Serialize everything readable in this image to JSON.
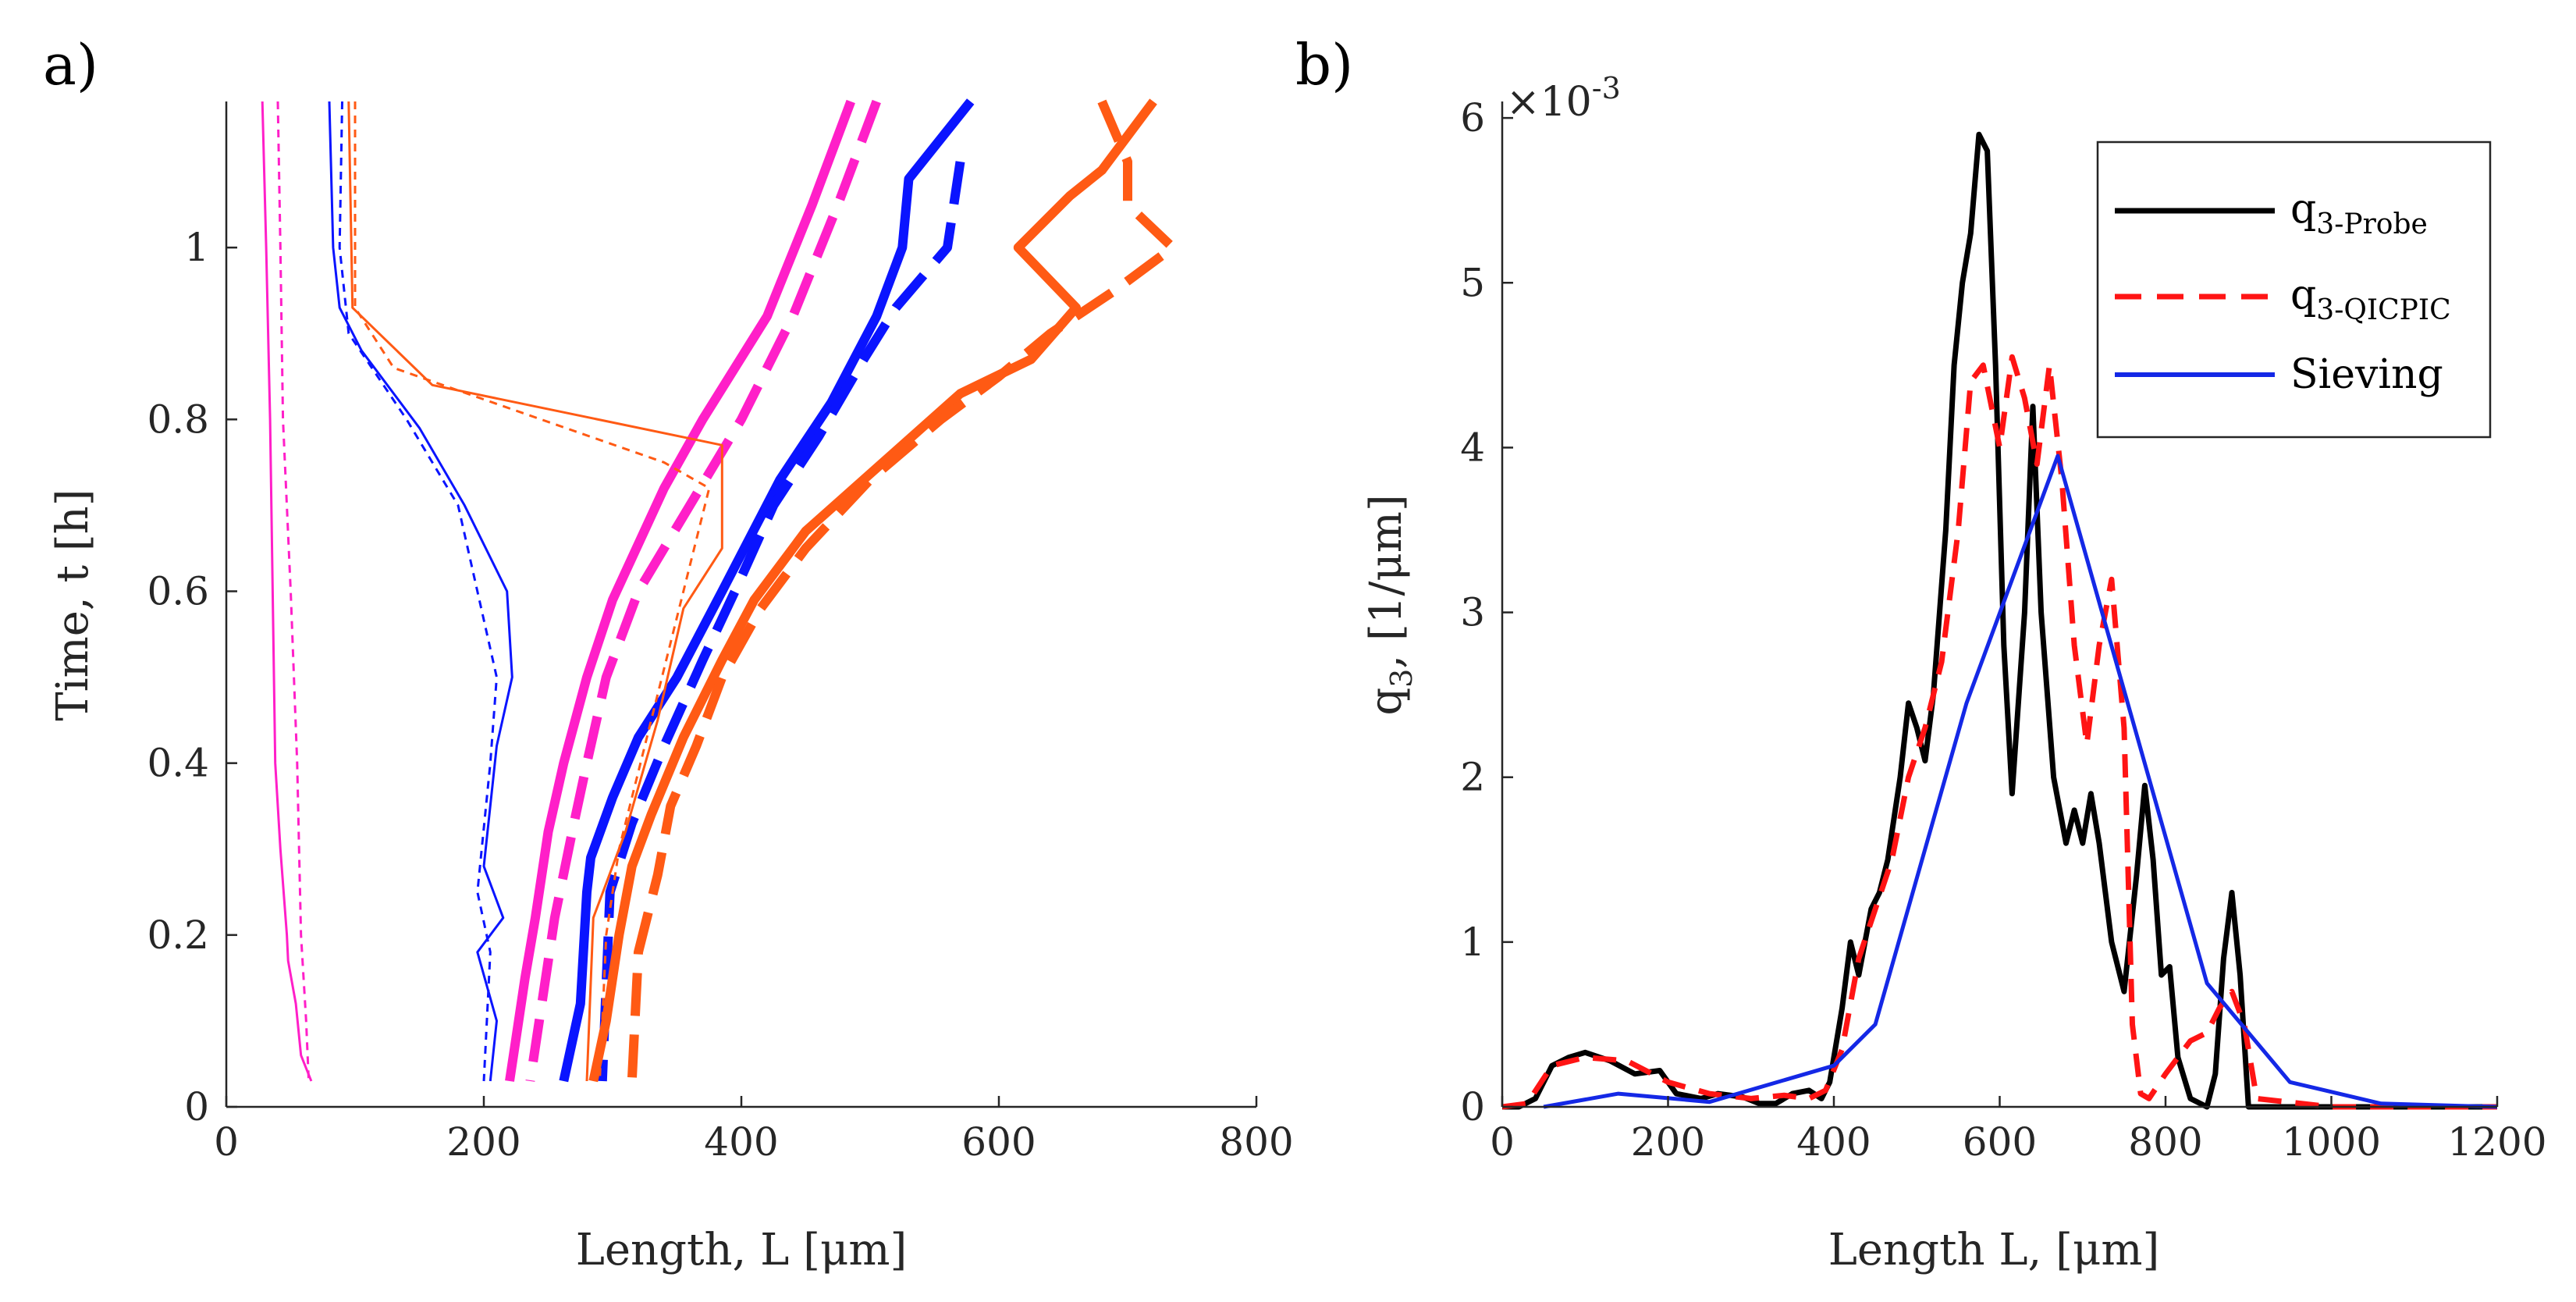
{
  "chart_data": [
    {
      "type": "line",
      "panel_label": "a)",
      "xlabel": "Length, L [μm]",
      "ylabel": "Time, t [h]",
      "xlim": [
        0,
        800
      ],
      "ylim": [
        0,
        1.17
      ],
      "xticks": [
        0,
        200,
        400,
        600,
        800
      ],
      "xtick_labels": [
        "0",
        "200",
        "400",
        "600",
        "800"
      ],
      "yticks": [
        0,
        0.2,
        0.4,
        0.6,
        0.8,
        1
      ],
      "ytick_labels": [
        "0",
        "0.2",
        "0.4",
        "0.6",
        "0.8",
        "1"
      ],
      "grid": false,
      "series": [
        {
          "name": "magenta-thin-solid",
          "color": "#ff1fc8",
          "weight": "thin",
          "dash": "solid",
          "x": [
            28,
            31,
            34,
            36,
            38,
            42,
            47,
            48,
            54,
            58,
            66
          ],
          "y": [
            1.17,
            1.0,
            0.8,
            0.6,
            0.4,
            0.3,
            0.2,
            0.17,
            0.12,
            0.06,
            0.03
          ]
        },
        {
          "name": "magenta-thin-dashed",
          "color": "#ff1fc8",
          "weight": "thin",
          "dash": "dashed",
          "x": [
            40,
            42,
            44,
            50,
            55,
            58,
            62,
            64
          ],
          "y": [
            1.17,
            1.0,
            0.8,
            0.6,
            0.4,
            0.2,
            0.1,
            0.03
          ]
        },
        {
          "name": "magenta-thick-solid",
          "color": "#ff1fc8",
          "weight": "thick",
          "dash": "solid",
          "x": [
            485,
            455,
            420,
            370,
            340,
            300,
            280,
            262,
            250,
            240,
            232,
            225,
            220
          ],
          "y": [
            1.17,
            1.05,
            0.92,
            0.8,
            0.72,
            0.59,
            0.5,
            0.4,
            0.32,
            0.22,
            0.15,
            0.08,
            0.03
          ]
        },
        {
          "name": "magenta-thick-dashed",
          "color": "#ff1fc8",
          "weight": "thick",
          "dash": "dashed",
          "x": [
            505,
            475,
            440,
            400,
            360,
            320,
            295,
            280,
            270,
            255,
            245,
            236
          ],
          "y": [
            1.17,
            1.05,
            0.92,
            0.8,
            0.7,
            0.6,
            0.5,
            0.4,
            0.33,
            0.22,
            0.12,
            0.03
          ]
        },
        {
          "name": "blue-thin-solid",
          "color": "#0a14ff",
          "weight": "thin",
          "dash": "solid",
          "x": [
            80,
            83,
            88,
            105,
            150,
            185,
            218,
            222,
            210,
            200,
            215,
            195,
            210,
            205
          ],
          "y": [
            1.17,
            1.0,
            0.93,
            0.88,
            0.79,
            0.7,
            0.6,
            0.5,
            0.42,
            0.28,
            0.22,
            0.18,
            0.1,
            0.03
          ]
        },
        {
          "name": "blue-thin-dashed",
          "color": "#0a14ff",
          "weight": "thin",
          "dash": "dashed",
          "x": [
            90,
            88,
            95,
            140,
            180,
            210,
            205,
            195,
            205,
            200
          ],
          "y": [
            1.17,
            1.0,
            0.9,
            0.8,
            0.7,
            0.5,
            0.4,
            0.25,
            0.18,
            0.03
          ]
        },
        {
          "name": "blue-thick-solid",
          "color": "#0a14ff",
          "weight": "thick",
          "dash": "solid",
          "x": [
            578,
            530,
            525,
            505,
            470,
            430,
            385,
            350,
            320,
            300,
            283,
            280,
            275,
            262
          ],
          "y": [
            1.17,
            1.08,
            1.0,
            0.92,
            0.82,
            0.73,
            0.6,
            0.5,
            0.43,
            0.36,
            0.29,
            0.25,
            0.12,
            0.03
          ]
        },
        {
          "name": "blue-thick-dashed",
          "color": "#0a14ff",
          "weight": "thick",
          "dash": "dashed",
          "x": [
            570,
            560,
            520,
            495,
            460,
            425,
            395,
            370,
            340,
            315,
            298,
            292
          ],
          "y": [
            1.1,
            1.0,
            0.93,
            0.87,
            0.78,
            0.7,
            0.6,
            0.52,
            0.42,
            0.33,
            0.25,
            0.03
          ]
        },
        {
          "name": "orange-thin-solid",
          "color": "#ff5a14",
          "weight": "thin",
          "dash": "solid",
          "x": [
            95,
            98,
            160,
            385,
            385,
            355,
            335,
            310,
            285,
            280
          ],
          "y": [
            1.17,
            0.93,
            0.84,
            0.77,
            0.65,
            0.58,
            0.45,
            0.32,
            0.22,
            0.03
          ]
        },
        {
          "name": "orange-thin-dashed",
          "color": "#ff5a14",
          "weight": "thin",
          "dash": "dashed",
          "x": [
            100,
            100,
            130,
            340,
            375,
            355,
            330,
            305,
            295,
            290
          ],
          "y": [
            1.17,
            0.93,
            0.86,
            0.75,
            0.72,
            0.6,
            0.45,
            0.3,
            0.2,
            0.03
          ]
        },
        {
          "name": "orange-thick-solid",
          "color": "#ff5a14",
          "weight": "thick",
          "dash": "solid",
          "x": [
            720,
            680,
            655,
            615,
            660,
            625,
            570,
            510,
            450,
            410,
            385,
            355,
            330,
            315,
            305,
            295,
            285
          ],
          "y": [
            1.17,
            1.09,
            1.06,
            1.0,
            0.93,
            0.87,
            0.83,
            0.75,
            0.67,
            0.59,
            0.52,
            0.43,
            0.34,
            0.28,
            0.2,
            0.1,
            0.03
          ]
        },
        {
          "name": "orange-thick-dashed",
          "color": "#ff5a14",
          "weight": "thick",
          "dash": "dashed",
          "x": [
            680,
            700,
            700,
            735,
            690,
            640,
            600,
            555,
            500,
            450,
            415,
            385,
            365,
            345,
            335,
            320,
            315
          ],
          "y": [
            1.17,
            1.1,
            1.05,
            1.0,
            0.95,
            0.9,
            0.85,
            0.8,
            0.73,
            0.65,
            0.58,
            0.5,
            0.42,
            0.35,
            0.27,
            0.18,
            0.03
          ]
        }
      ]
    },
    {
      "type": "line",
      "panel_label": "b)",
      "xlabel": "Length L, [μm]",
      "ylabel": "q",
      "ylabel_sub": "3",
      "ylabel_rest": ", [1/μm]",
      "exponent_base": "×10",
      "exponent": "-3",
      "xlim": [
        0,
        1200
      ],
      "ylim": [
        0,
        6.1
      ],
      "xticks": [
        0,
        200,
        400,
        600,
        800,
        1000,
        1200
      ],
      "xtick_labels": [
        "0",
        "200",
        "400",
        "600",
        "800",
        "1000",
        "1200"
      ],
      "yticks": [
        0,
        1,
        2,
        3,
        4,
        5,
        6
      ],
      "ytick_labels": [
        "0",
        "1",
        "2",
        "3",
        "4",
        "5",
        "6"
      ],
      "grid": false,
      "legend_position": "top-right",
      "legend": [
        {
          "label": "q",
          "sub": "3-Probe",
          "color": "#000000",
          "dash": "solid"
        },
        {
          "label": "q",
          "sub": "3-QICPIC",
          "color": "#ff1414",
          "dash": "dashed"
        },
        {
          "label": "Sieving",
          "sub": "",
          "color": "#1428e6",
          "dash": "solid"
        }
      ],
      "series": [
        {
          "name": "q3-Probe",
          "color": "#000000",
          "dash": "solid",
          "x": [
            0,
            20,
            40,
            60,
            80,
            100,
            130,
            160,
            190,
            210,
            240,
            260,
            290,
            310,
            330,
            350,
            370,
            385,
            395,
            410,
            420,
            430,
            445,
            455,
            465,
            480,
            490,
            500,
            510,
            520,
            535,
            545,
            555,
            565,
            575,
            585,
            595,
            605,
            615,
            630,
            640,
            650,
            665,
            680,
            690,
            700,
            710,
            720,
            735,
            750,
            765,
            775,
            785,
            795,
            805,
            815,
            830,
            850,
            860,
            870,
            880,
            890,
            900,
            920,
            1000,
            1100,
            1200
          ],
          "y": [
            0,
            0,
            0.05,
            0.25,
            0.3,
            0.33,
            0.28,
            0.2,
            0.22,
            0.08,
            0.05,
            0.08,
            0.06,
            0.02,
            0.02,
            0.08,
            0.1,
            0.05,
            0.15,
            0.6,
            1.0,
            0.8,
            1.2,
            1.3,
            1.5,
            2.0,
            2.45,
            2.3,
            2.1,
            2.5,
            3.5,
            4.5,
            5.0,
            5.3,
            5.9,
            5.8,
            4.5,
            2.8,
            1.9,
            3.0,
            4.25,
            3.0,
            2.0,
            1.6,
            1.8,
            1.6,
            1.9,
            1.6,
            1.0,
            0.7,
            1.4,
            1.95,
            1.5,
            0.8,
            0.85,
            0.3,
            0.05,
            0.0,
            0.2,
            0.9,
            1.3,
            0.8,
            0.0,
            0.0,
            0.0,
            0.0,
            0.0
          ]
        },
        {
          "name": "q3-QICPIC",
          "color": "#ff1414",
          "dash": "dashed",
          "x": [
            0,
            30,
            60,
            100,
            150,
            200,
            250,
            300,
            340,
            370,
            390,
            410,
            430,
            450,
            470,
            490,
            510,
            530,
            550,
            565,
            580,
            600,
            615,
            630,
            645,
            660,
            675,
            690,
            705,
            720,
            735,
            750,
            760,
            770,
            780,
            800,
            830,
            850,
            865,
            880,
            895,
            910,
            1000,
            1200
          ],
          "y": [
            0,
            0.02,
            0.25,
            0.3,
            0.28,
            0.15,
            0.08,
            0.05,
            0.07,
            0.05,
            0.1,
            0.35,
            0.9,
            1.2,
            1.5,
            2.0,
            2.3,
            2.7,
            3.5,
            4.4,
            4.5,
            4.0,
            4.55,
            4.3,
            3.9,
            4.5,
            3.8,
            2.8,
            2.2,
            2.8,
            3.2,
            2.3,
            0.5,
            0.08,
            0.05,
            0.2,
            0.4,
            0.45,
            0.6,
            0.7,
            0.5,
            0.05,
            0.0,
            0.0
          ]
        },
        {
          "name": "Sieving",
          "color": "#1428e6",
          "dash": "solid",
          "x": [
            50,
            140,
            250,
            400,
            450,
            560,
            670,
            850,
            950,
            1060,
            1200
          ],
          "y": [
            0.0,
            0.08,
            0.03,
            0.25,
            0.5,
            2.45,
            3.95,
            0.75,
            0.15,
            0.02,
            0.0
          ]
        }
      ]
    }
  ]
}
